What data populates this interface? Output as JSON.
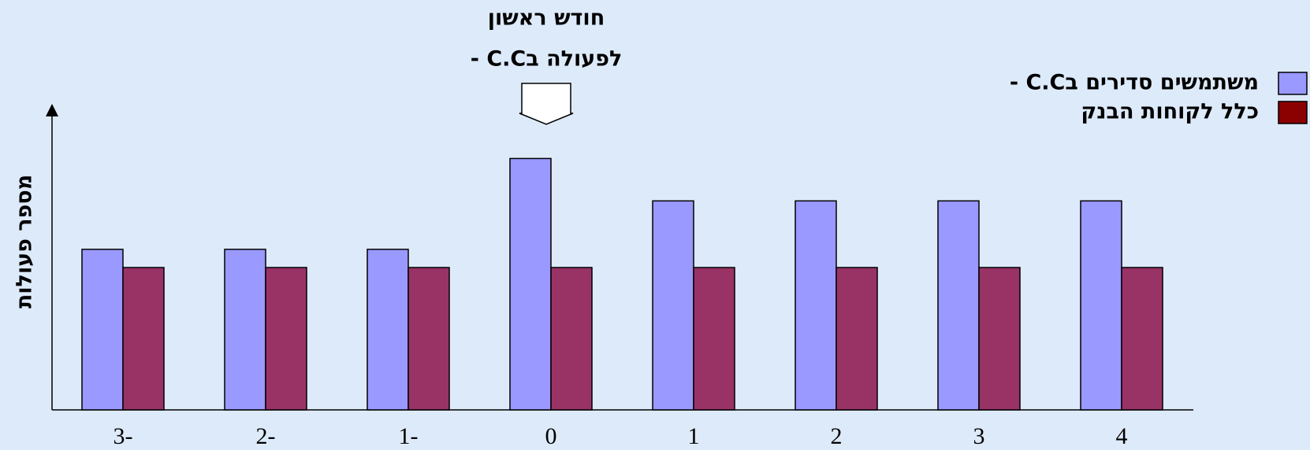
{
  "chart_data": {
    "type": "bar",
    "title_lines": [
      "חודש ראשון",
      "לפעולה בC.C -"
    ],
    "y_label": "מספר פעולות",
    "categories": [
      "3-",
      "2-",
      "1-",
      "0",
      "1",
      "2",
      "3",
      "4"
    ],
    "series": [
      {
        "name": "משתמשים סדירים בC.C -",
        "color": "#9999ff",
        "legend_color": "#9999ff",
        "values": [
          53,
          53,
          53,
          83,
          69,
          69,
          69,
          69
        ]
      },
      {
        "name": "כלל לקוחות הבנק",
        "color": "#993366",
        "legend_color": "#8b0000",
        "values": [
          47,
          47,
          47,
          47,
          47,
          47,
          47,
          47
        ]
      }
    ],
    "ylim": [
      0,
      100
    ],
    "legend": "top-right"
  }
}
